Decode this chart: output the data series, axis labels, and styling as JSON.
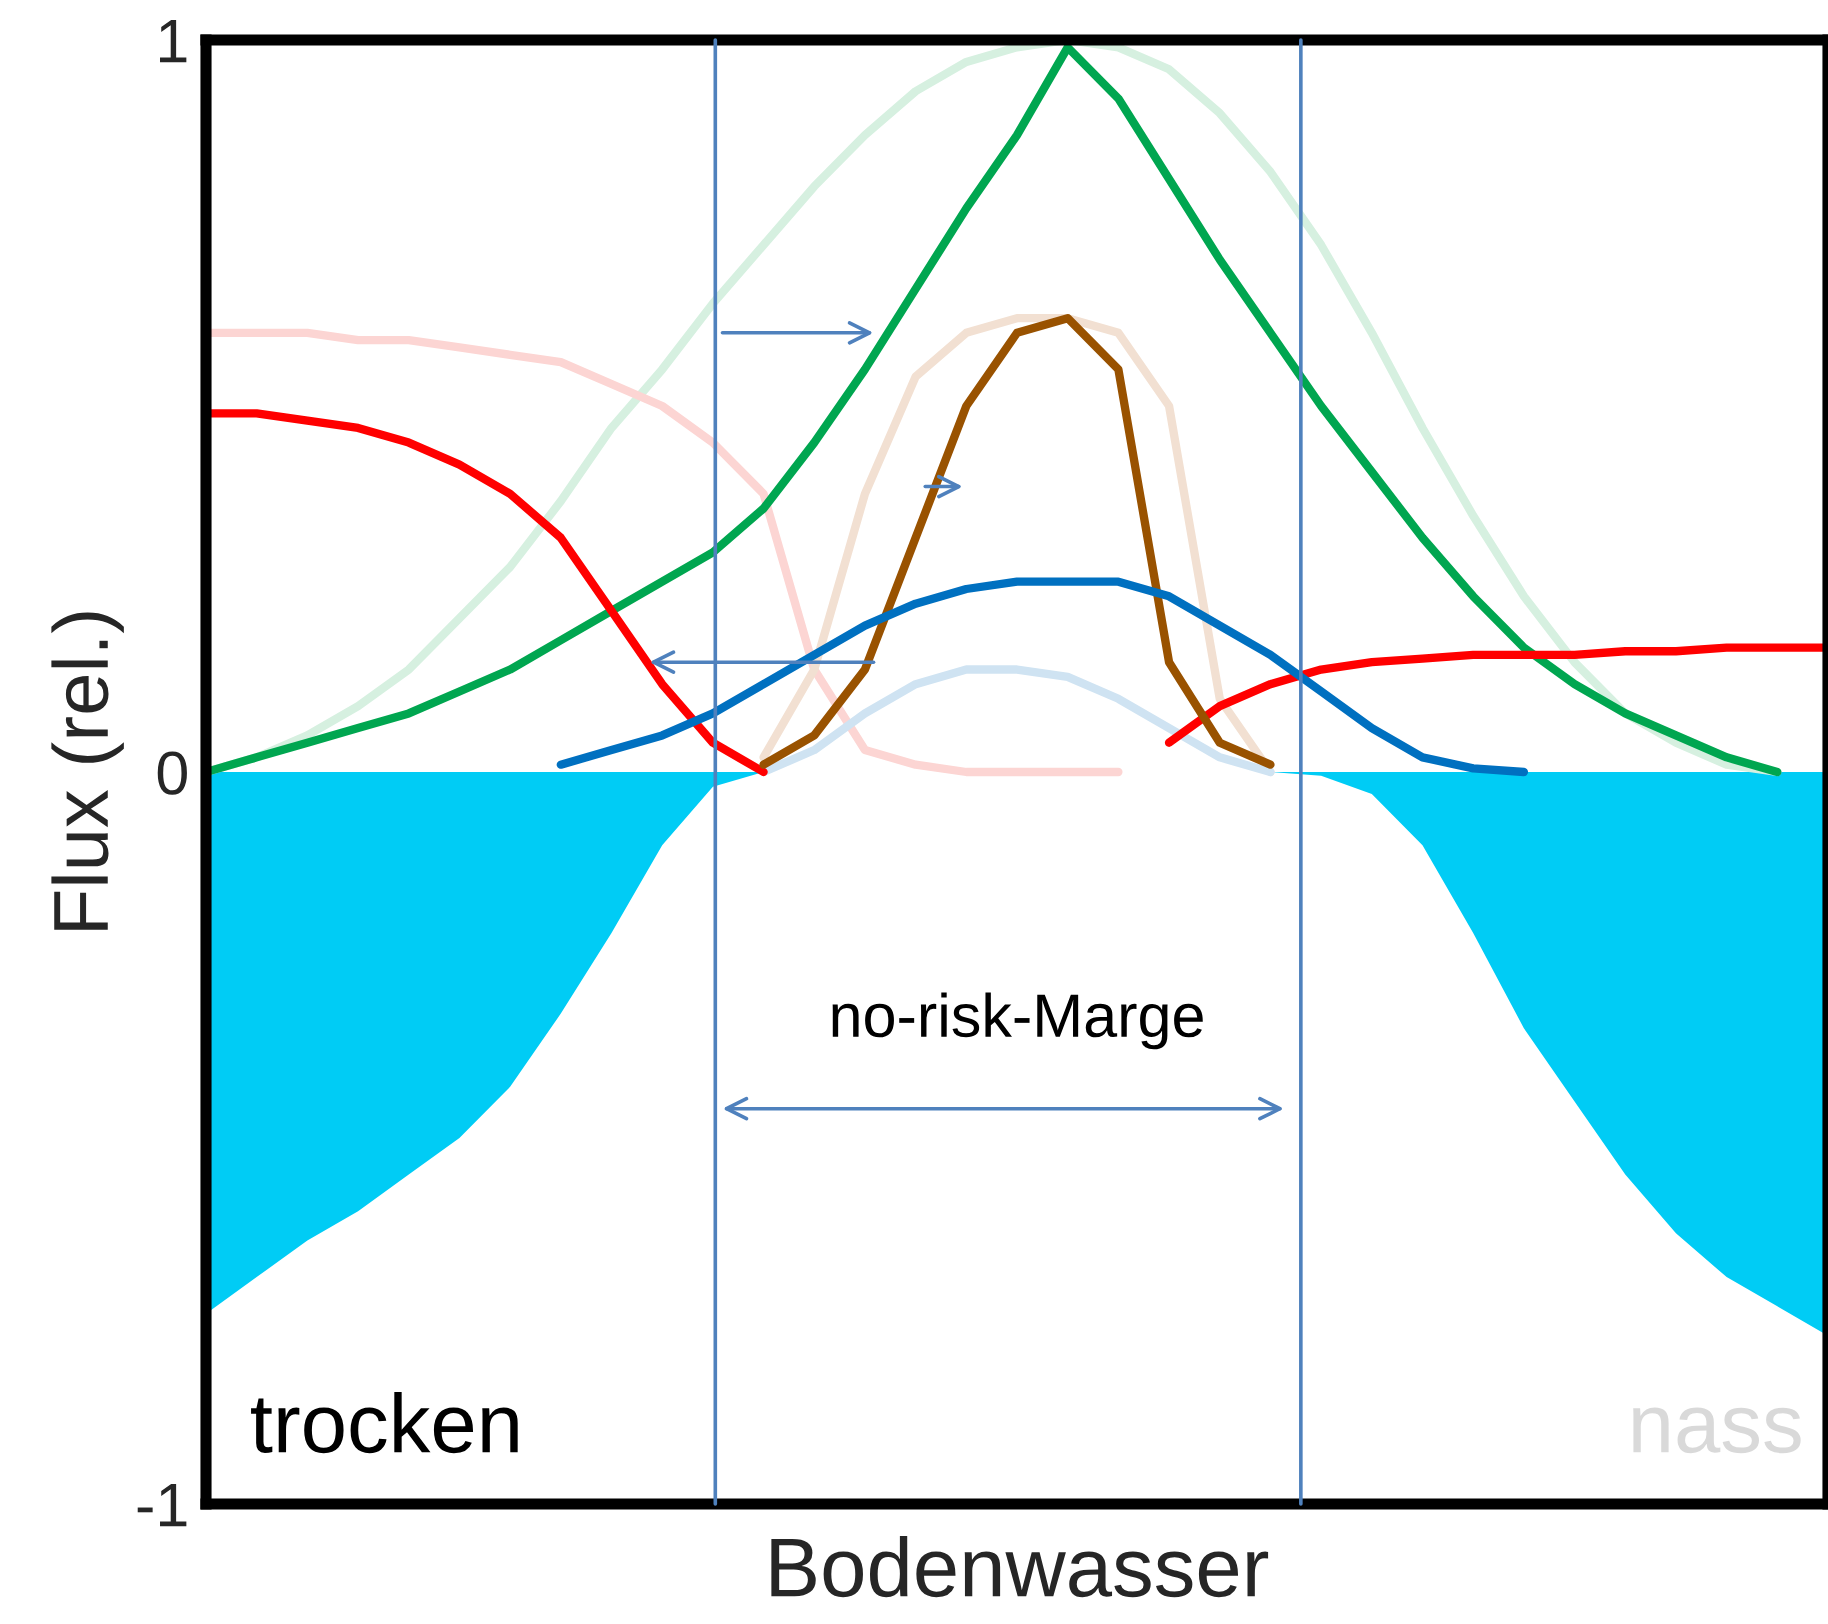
{
  "chart_data": {
    "type": "line",
    "xlabel": "Bodenwasser",
    "ylabel": "Flux (rel.)",
    "categories": [
      null,
      null,
      null,
      null,
      null,
      null,
      null,
      null,
      null,
      null,
      null,
      null,
      null,
      null,
      null,
      null,
      null,
      null,
      null,
      null,
      null,
      null,
      null,
      null,
      null,
      null,
      null,
      null,
      null,
      null,
      null,
      null,
      null
    ],
    "ylim": [
      -1,
      1
    ],
    "yticks": [
      -1,
      0,
      1
    ],
    "grid": false,
    "legend": false,
    "series": [
      {
        "color": "#d6f0e0",
        "values": [
          0,
          0.02,
          0.05,
          0.09,
          0.14,
          0.21,
          0.28,
          0.37,
          0.47,
          0.55,
          0.64,
          0.72,
          0.8,
          0.87,
          0.93,
          0.97,
          0.99,
          1.0,
          0.99,
          0.96,
          0.9,
          0.82,
          0.72,
          0.6,
          0.47,
          0.35,
          0.24,
          0.15,
          0.08,
          0.04,
          0.01,
          0,
          null
        ]
      },
      {
        "color": "#fcd5d3",
        "values": [
          0.6,
          0.6,
          0.6,
          0.59,
          0.59,
          0.58,
          0.57,
          0.56,
          0.53,
          0.5,
          0.45,
          0.38,
          0.14,
          0.03,
          0.01,
          0,
          0,
          0,
          0,
          null,
          null,
          null,
          null,
          null,
          null,
          null,
          null,
          null,
          null,
          null,
          null,
          null,
          null
        ]
      },
      {
        "color": "#f2e0d2",
        "values": [
          null,
          null,
          null,
          null,
          null,
          null,
          null,
          null,
          null,
          null,
          null,
          0.02,
          0.14,
          0.38,
          0.54,
          0.6,
          0.62,
          0.62,
          0.6,
          0.5,
          0.1,
          0.0,
          null,
          null,
          null,
          null,
          null,
          null,
          null,
          null,
          null,
          null,
          null
        ]
      },
      {
        "color": "#cfe3f2",
        "values": [
          null,
          null,
          null,
          null,
          null,
          null,
          null,
          null,
          null,
          null,
          null,
          0.0,
          0.03,
          0.08,
          0.12,
          0.14,
          0.14,
          0.13,
          0.1,
          0.06,
          0.02,
          0.0,
          null,
          null,
          null,
          null,
          null,
          null,
          null,
          null,
          null,
          null,
          null
        ]
      },
      {
        "color": "#00ccf5",
        "type": "area",
        "values": [
          -0.74,
          -0.69,
          -0.64,
          -0.6,
          -0.55,
          -0.5,
          -0.43,
          -0.33,
          -0.22,
          -0.1,
          -0.02,
          0,
          0,
          0,
          0,
          0,
          0,
          0,
          0,
          0,
          0,
          0,
          -0.005,
          -0.03,
          -0.1,
          -0.22,
          -0.35,
          -0.45,
          -0.55,
          -0.63,
          -0.69,
          -0.73,
          -0.77
        ]
      },
      {
        "color": "#00a650",
        "values": [
          0,
          0.02,
          0.04,
          0.06,
          0.08,
          0.11,
          0.14,
          0.18,
          0.22,
          0.26,
          0.3,
          0.36,
          0.45,
          0.55,
          0.66,
          0.77,
          0.87,
          0.99,
          0.92,
          0.81,
          0.7,
          0.6,
          0.5,
          0.41,
          0.32,
          0.24,
          0.17,
          0.12,
          0.08,
          0.05,
          0.02,
          0,
          null
        ]
      },
      {
        "color": "#ff0000",
        "values": [
          0.49,
          0.49,
          0.48,
          0.47,
          0.45,
          0.42,
          0.38,
          0.32,
          0.22,
          0.12,
          0.04,
          0.0,
          null,
          null,
          null,
          null,
          null,
          null,
          null,
          0.04,
          0.09,
          0.12,
          0.14,
          0.15,
          0.155,
          0.16,
          0.16,
          0.16,
          0.165,
          0.165,
          0.17,
          0.17,
          0.17
        ]
      },
      {
        "color": "#995200",
        "values": [
          null,
          null,
          null,
          null,
          null,
          null,
          null,
          null,
          null,
          null,
          null,
          0.01,
          0.05,
          0.14,
          0.32,
          0.5,
          0.6,
          0.62,
          0.55,
          0.15,
          0.04,
          0.01,
          null,
          null,
          null,
          null,
          null,
          null,
          null,
          null,
          null,
          null,
          null
        ]
      },
      {
        "color": "#0070c0",
        "values": [
          null,
          null,
          null,
          null,
          null,
          null,
          null,
          0.01,
          0.03,
          0.05,
          0.08,
          0.12,
          0.16,
          0.2,
          0.23,
          0.25,
          0.26,
          0.26,
          0.26,
          0.24,
          0.2,
          0.16,
          0.11,
          0.06,
          0.02,
          0.005,
          0,
          null,
          null,
          null,
          null,
          null,
          null
        ]
      }
    ],
    "annotations": [
      "no-risk-Marge",
      "trocken",
      "nass"
    ]
  }
}
